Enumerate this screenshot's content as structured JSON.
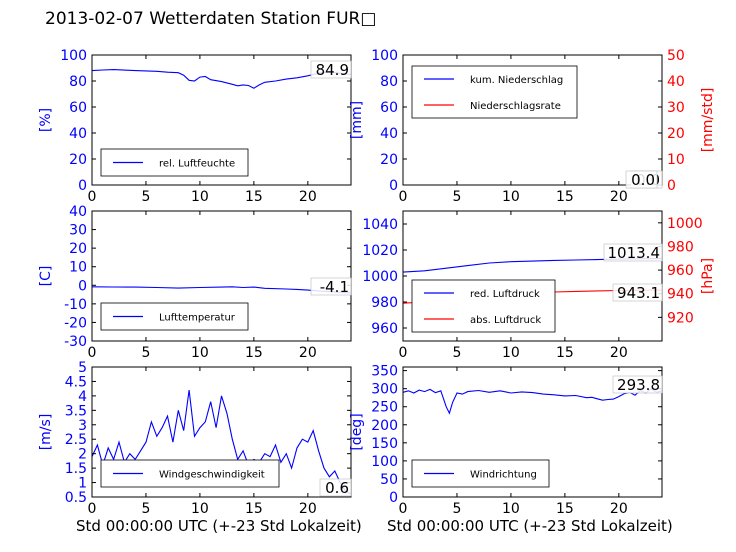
{
  "title": "2013-02-07 Wetterdaten Station FUR□",
  "xlabel": "Std 00:00:00 UTC (+-23 Std Lokalzeit)",
  "colors": {
    "left": "#0000ff",
    "right": "#ff0000",
    "box_text": "#000000"
  },
  "chart_data": [
    {
      "id": "humidity",
      "type": "line",
      "xlim": [
        0,
        24
      ],
      "xticks": [
        0,
        5,
        10,
        15,
        20
      ],
      "ylim": [
        0,
        100
      ],
      "yticks": [
        0,
        20,
        40,
        60,
        80,
        100
      ],
      "ylabel": "[%]",
      "legend_placement": "lower-left",
      "current_value": "84.9",
      "series": [
        {
          "name": "rel. Luftfeuchte",
          "axis": "left",
          "color": "#0000ff",
          "x": [
            0,
            1,
            2,
            3,
            4,
            5,
            6,
            7,
            8,
            8.5,
            9,
            9.5,
            10,
            10.5,
            11,
            12,
            13,
            13.5,
            14,
            14.5,
            15,
            15.5,
            16,
            17,
            18,
            19,
            20,
            21,
            22,
            23,
            24
          ],
          "y": [
            88,
            88.5,
            88.8,
            88.4,
            88,
            87.8,
            87.5,
            86.8,
            86.4,
            84.5,
            80.5,
            80,
            83,
            83.5,
            81,
            79.5,
            77.5,
            76.3,
            77,
            76.5,
            74.5,
            77,
            79,
            80,
            81.5,
            82.5,
            84,
            86,
            87,
            86,
            85
          ]
        }
      ]
    },
    {
      "id": "precip",
      "type": "line",
      "xlim": [
        0,
        24
      ],
      "xticks": [
        0,
        5,
        10,
        15,
        20
      ],
      "ylim": [
        0,
        100
      ],
      "yticks": [
        0,
        20,
        40,
        60,
        80,
        100
      ],
      "ylabel": "[mm]",
      "ylim_right": [
        0,
        50
      ],
      "yticks_right": [
        0,
        10,
        20,
        30,
        40,
        50
      ],
      "ylabel_right": "[mm/std]",
      "legend_placement": "upper-left",
      "current_value": "0.0",
      "current_value_2": "0.0",
      "series": [
        {
          "name": "kum. Niederschlag",
          "axis": "left",
          "color": "#0000ff",
          "x": [
            0,
            24
          ],
          "y": [
            0,
            0
          ]
        },
        {
          "name": "Niederschlagsrate",
          "axis": "right",
          "color": "#ff0000",
          "x": [
            0,
            24
          ],
          "y": [
            0,
            0
          ]
        }
      ]
    },
    {
      "id": "temperature",
      "type": "line",
      "xlim": [
        0,
        24
      ],
      "xticks": [
        0,
        5,
        10,
        15,
        20
      ],
      "ylim": [
        -30,
        40
      ],
      "yticks": [
        -30,
        -20,
        -10,
        0,
        10,
        20,
        30,
        40
      ],
      "ylabel": "[C]",
      "legend_placement": "lower-left",
      "current_value": "-4.1",
      "series": [
        {
          "name": "Lufttemperatur",
          "axis": "left",
          "color": "#0000ff",
          "x": [
            0,
            2,
            4,
            6,
            8,
            10,
            12,
            13,
            14,
            15,
            16,
            18,
            19,
            20,
            21,
            22,
            23,
            24
          ],
          "y": [
            -0.8,
            -0.9,
            -1.0,
            -1.2,
            -1.5,
            -1.2,
            -1.0,
            -0.8,
            -1.2,
            -1.0,
            -1.6,
            -2.0,
            -2.2,
            -2.6,
            -3.0,
            -3.4,
            -3.8,
            -4.1
          ]
        }
      ]
    },
    {
      "id": "pressure",
      "type": "line",
      "xlim": [
        0,
        24
      ],
      "xticks": [
        0,
        5,
        10,
        15,
        20
      ],
      "ylim": [
        950,
        1050
      ],
      "yticks": [
        960,
        980,
        1000,
        1020,
        1040
      ],
      "ylabel": "",
      "ylim_right": [
        900,
        1010
      ],
      "yticks_right": [
        920,
        940,
        960,
        980,
        1000
      ],
      "ylabel_right": "[hPa]",
      "legend_placement": "lower-left",
      "current_value": "1013.4",
      "current_value_2": "943.1",
      "series": [
        {
          "name": "red. Luftdruck",
          "axis": "left",
          "color": "#0000ff",
          "x": [
            0,
            2,
            4,
            6,
            8,
            10,
            12,
            14,
            16,
            18,
            20,
            22,
            24
          ],
          "y": [
            1003,
            1004,
            1006,
            1008,
            1010,
            1011,
            1011.5,
            1012,
            1012.3,
            1012.6,
            1013,
            1013.2,
            1013.4
          ]
        },
        {
          "name": "abs. Luftdruck",
          "axis": "right",
          "color": "#ff0000",
          "x": [
            0,
            2,
            4,
            6,
            8,
            10,
            12,
            14,
            16,
            18,
            20,
            22,
            24
          ],
          "y": [
            932,
            933,
            935,
            937,
            939,
            940,
            941,
            941.5,
            942,
            942.4,
            942.7,
            943,
            943.1
          ]
        }
      ]
    },
    {
      "id": "windspeed",
      "type": "line",
      "xlim": [
        0,
        24
      ],
      "xticks": [
        0,
        5,
        10,
        15,
        20
      ],
      "ylim": [
        0.5,
        5.0
      ],
      "yticks": [
        0.5,
        1.0,
        1.5,
        2.0,
        2.5,
        3.0,
        3.5,
        4.0,
        4.5,
        5.0
      ],
      "ylabel": "[m/s]",
      "legend_placement": "lower-left",
      "current_value": "0.6",
      "series": [
        {
          "name": "Windgeschwindigkeit",
          "axis": "left",
          "color": "#0000ff",
          "x": [
            0,
            0.5,
            1,
            1.5,
            2,
            2.5,
            3,
            3.5,
            4,
            4.5,
            5,
            5.5,
            6,
            6.5,
            7,
            7.5,
            8,
            8.5,
            9,
            9.5,
            10,
            10.5,
            11,
            11.5,
            12,
            12.5,
            13,
            13.5,
            14,
            14.5,
            15,
            15.5,
            16,
            16.5,
            17,
            17.5,
            18,
            18.5,
            19,
            19.5,
            20,
            20.5,
            21,
            21.5,
            22,
            22.5,
            23,
            23.5,
            24
          ],
          "y": [
            1.9,
            2.3,
            1.6,
            2.2,
            1.8,
            2.4,
            1.7,
            2.0,
            1.8,
            2.1,
            2.4,
            3.1,
            2.6,
            2.9,
            3.3,
            2.4,
            3.5,
            2.8,
            4.2,
            2.6,
            2.9,
            3.1,
            3.8,
            2.9,
            4.0,
            3.4,
            2.5,
            1.8,
            2.1,
            1.6,
            1.8,
            1.7,
            2.0,
            1.9,
            2.3,
            1.7,
            2.0,
            1.5,
            2.2,
            2.5,
            2.4,
            2.8,
            2.1,
            1.5,
            1.2,
            1.4,
            1.0,
            0.7,
            0.6
          ]
        }
      ]
    },
    {
      "id": "winddir",
      "type": "line",
      "xlim": [
        0,
        24
      ],
      "xticks": [
        0,
        5,
        10,
        15,
        20
      ],
      "ylim": [
        0,
        360
      ],
      "yticks": [
        0,
        50,
        100,
        150,
        200,
        250,
        300,
        350
      ],
      "ylabel": "[deg]",
      "legend_placement": "lower-left",
      "current_value": "293.8",
      "series": [
        {
          "name": "Windrichtung",
          "axis": "left",
          "color": "#0000ff",
          "x": [
            0,
            0.5,
            1,
            1.5,
            2,
            2.5,
            3,
            3.5,
            4,
            4.3,
            4.6,
            5,
            5.5,
            6,
            7,
            8,
            9,
            10,
            11,
            12,
            13,
            14,
            15,
            16,
            17,
            17.5,
            18,
            18.5,
            19,
            19.5,
            20,
            20.5,
            21,
            21.5,
            22,
            22.5,
            23,
            23.5,
            24
          ],
          "y": [
            290,
            294,
            288,
            296,
            292,
            298,
            289,
            294,
            250,
            232,
            262,
            288,
            285,
            292,
            295,
            290,
            294,
            288,
            291,
            289,
            285,
            283,
            280,
            281,
            275,
            276,
            272,
            268,
            270,
            271,
            278,
            286,
            290,
            282,
            295,
            288,
            300,
            290,
            294
          ]
        }
      ]
    }
  ]
}
